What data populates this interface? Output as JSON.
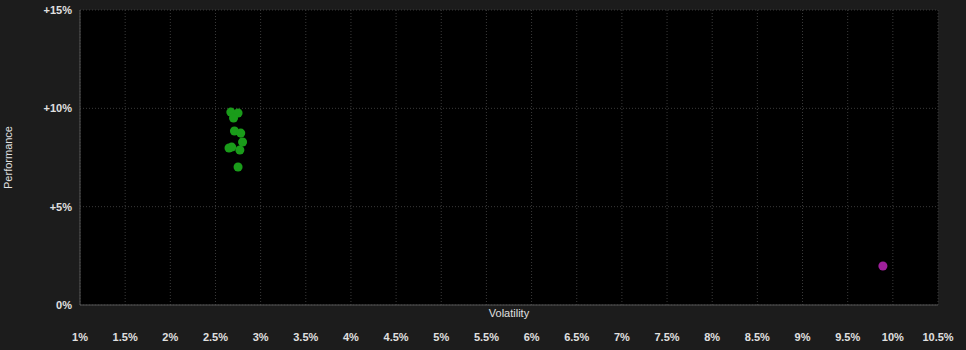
{
  "chart_data": {
    "type": "scatter",
    "xlabel": "Volatility",
    "ylabel": "Performance",
    "xlim": [
      1,
      10.5
    ],
    "ylim": [
      0,
      15
    ],
    "xticks": [
      {
        "value": 1,
        "label": "1%"
      },
      {
        "value": 1.5,
        "label": "1.5%"
      },
      {
        "value": 2,
        "label": "2%"
      },
      {
        "value": 2.5,
        "label": "2.5%"
      },
      {
        "value": 3,
        "label": "3%"
      },
      {
        "value": 3.5,
        "label": "3.5%"
      },
      {
        "value": 4,
        "label": "4%"
      },
      {
        "value": 4.5,
        "label": "4.5%"
      },
      {
        "value": 5,
        "label": "5%"
      },
      {
        "value": 5.5,
        "label": "5.5%"
      },
      {
        "value": 6,
        "label": "6%"
      },
      {
        "value": 6.5,
        "label": "6.5%"
      },
      {
        "value": 7,
        "label": "7%"
      },
      {
        "value": 7.5,
        "label": "7.5%"
      },
      {
        "value": 8,
        "label": "8%"
      },
      {
        "value": 8.5,
        "label": "8.5%"
      },
      {
        "value": 9,
        "label": "9%"
      },
      {
        "value": 9.5,
        "label": "9.5%"
      },
      {
        "value": 10,
        "label": "10%"
      },
      {
        "value": 10.5,
        "label": "10.5%"
      }
    ],
    "yticks": [
      {
        "value": 0,
        "label": "0%"
      },
      {
        "value": 5,
        "label": "+5%"
      },
      {
        "value": 10,
        "label": "+10%"
      },
      {
        "value": 15,
        "label": "+15%"
      }
    ],
    "grid": true,
    "marker": "circle",
    "series": [
      {
        "color": "#1a9c1a",
        "x": [
          2.67,
          2.75,
          2.7,
          2.71,
          2.78,
          2.8,
          2.65,
          2.68,
          2.77,
          2.75
        ],
        "y": [
          9.81,
          9.76,
          9.51,
          8.85,
          8.74,
          8.29,
          7.98,
          8.03,
          7.88,
          7.02
        ]
      },
      {
        "color": "#a0209c",
        "x": [
          9.89
        ],
        "y": [
          1.98
        ]
      }
    ]
  }
}
